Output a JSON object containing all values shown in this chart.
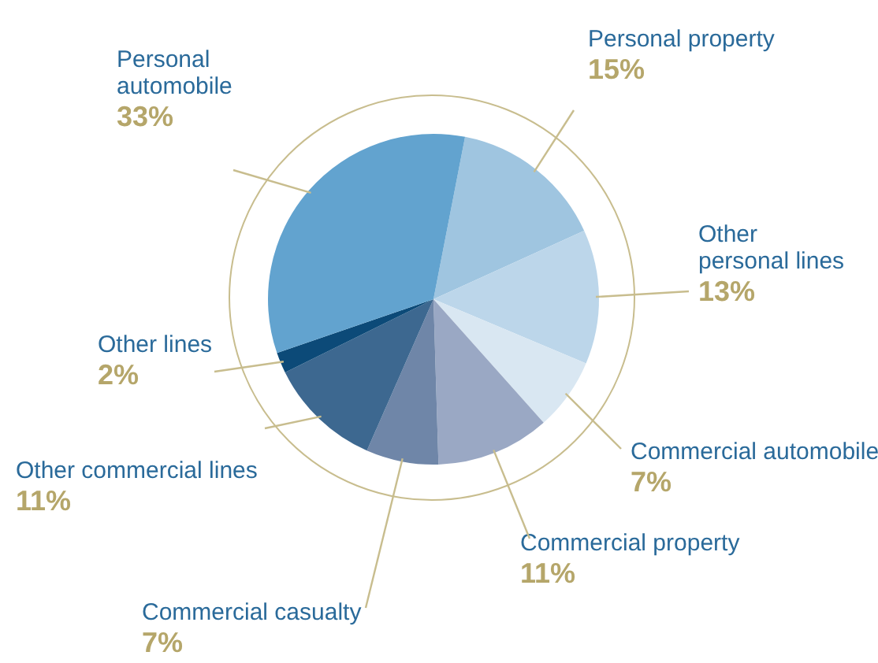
{
  "chart_data": {
    "type": "pie",
    "categories": [
      "Personal property",
      "Other personal lines",
      "Commercial automobile",
      "Commercial property",
      "Commercial casualty",
      "Other commercial lines",
      "Other lines",
      "Personal automobile"
    ],
    "values": [
      15,
      13,
      7,
      11,
      7,
      11,
      2,
      33
    ],
    "value_labels": [
      "15%",
      "13%",
      "7%",
      "11%",
      "7%",
      "11%",
      "2%",
      "33%"
    ],
    "colors": [
      "#9fc5e0",
      "#bcd6ea",
      "#d9e7f2",
      "#9aa8c4",
      "#6f86a8",
      "#3d6890",
      "#0c4a78",
      "#62a3cf"
    ],
    "legend": false
  }
}
